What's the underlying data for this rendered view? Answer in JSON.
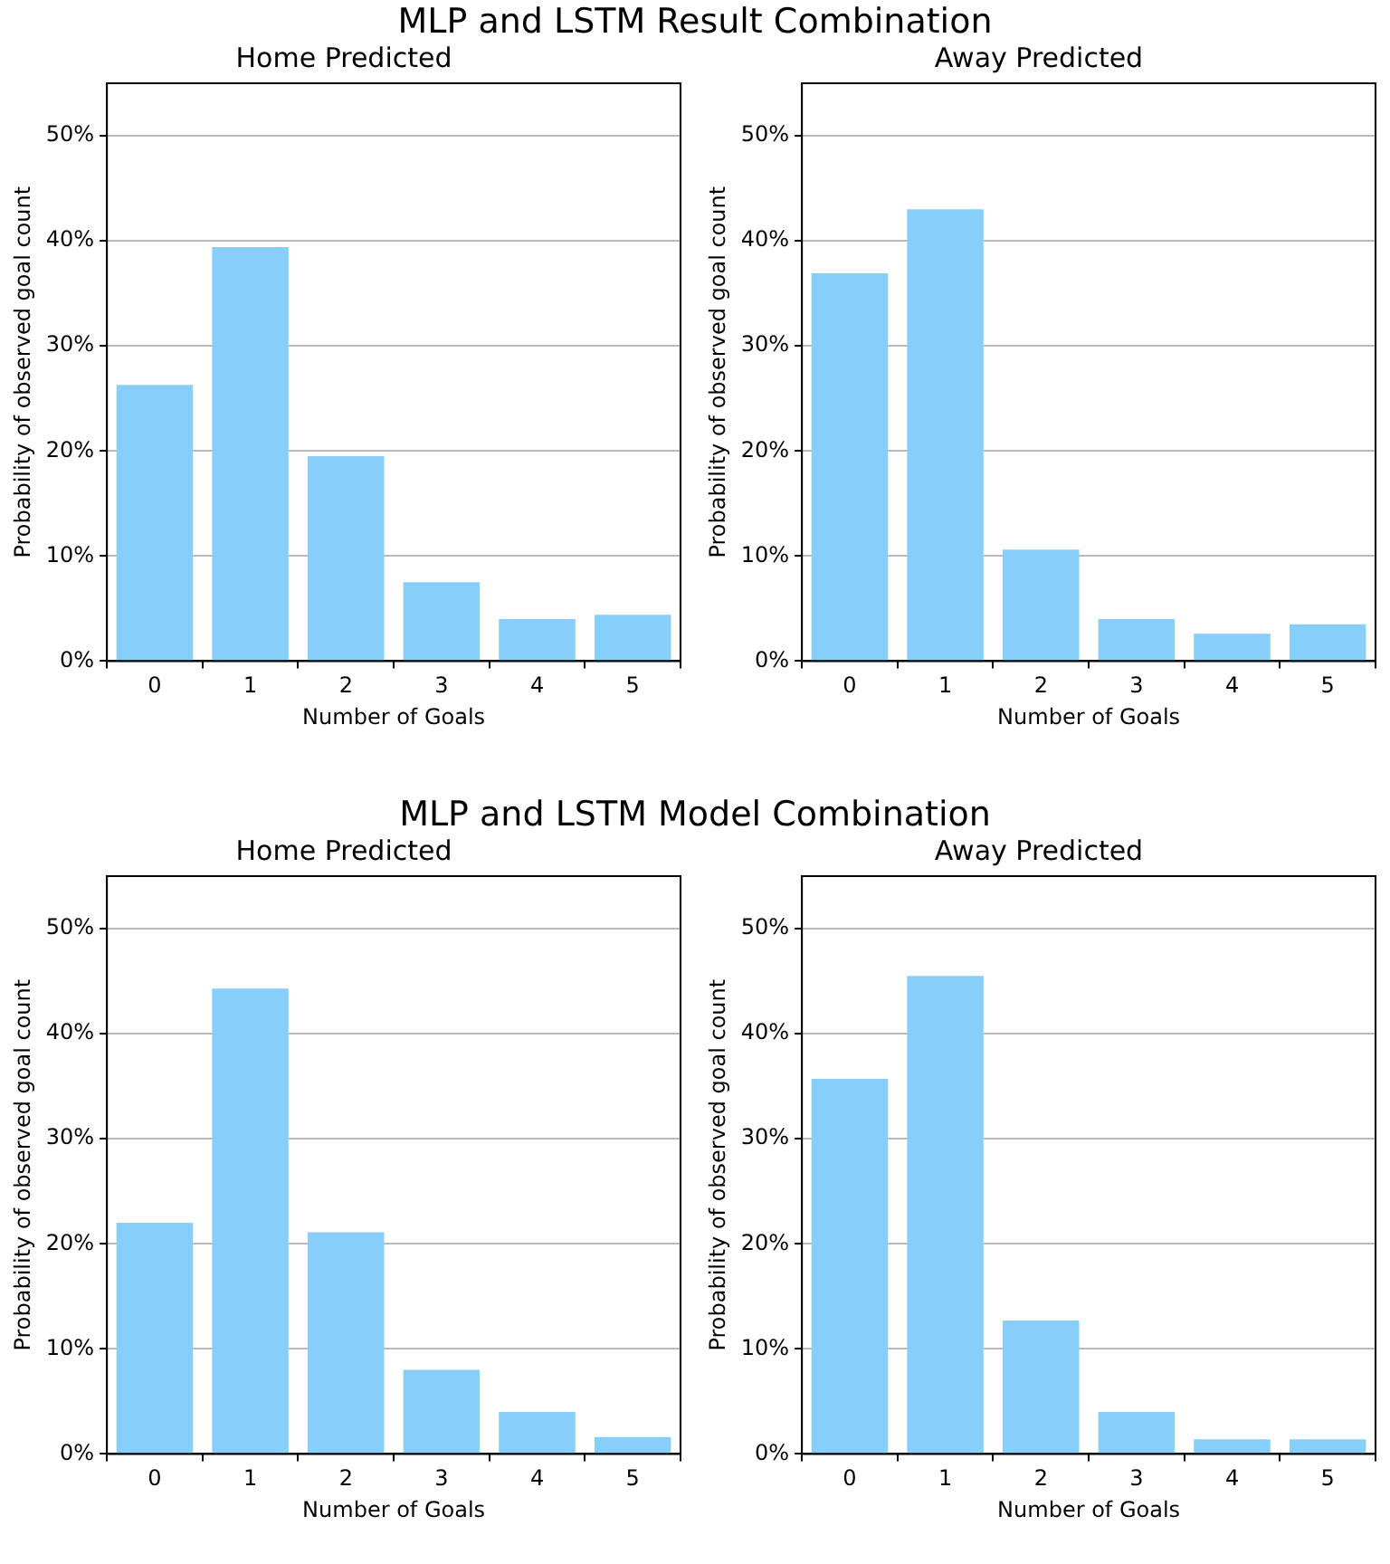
{
  "chart_data": [
    {
      "type": "bar",
      "annotations": [
        "MLP and LSTM Result Combination"
      ],
      "title": "Home Predicted",
      "xlabel": "Number of Goals",
      "ylabel": "Probability of observed goal count",
      "categories": [
        "0",
        "1",
        "2",
        "3",
        "4",
        "5"
      ],
      "values": [
        26.3,
        39.4,
        19.5,
        7.5,
        4.0,
        4.4
      ],
      "color": "#87cefa",
      "ylim": [
        0,
        55
      ],
      "yticks": [
        {
          "value": 0,
          "label": "0%"
        },
        {
          "value": 10,
          "label": "10%"
        },
        {
          "value": 20,
          "label": "20%"
        },
        {
          "value": 30,
          "label": "30%"
        },
        {
          "value": 40,
          "label": "40%"
        },
        {
          "value": 50,
          "label": "50%"
        }
      ],
      "grid": "y",
      "legend": false
    },
    {
      "type": "bar",
      "title": "Away Predicted",
      "xlabel": "Number of Goals",
      "ylabel": "Probability of observed goal count",
      "categories": [
        "0",
        "1",
        "2",
        "3",
        "4",
        "5"
      ],
      "values": [
        36.9,
        43.0,
        10.6,
        4.0,
        2.6,
        3.5
      ],
      "color": "#87cefa",
      "ylim": [
        0,
        55
      ],
      "yticks": [
        {
          "value": 0,
          "label": "0%"
        },
        {
          "value": 10,
          "label": "10%"
        },
        {
          "value": 20,
          "label": "20%"
        },
        {
          "value": 30,
          "label": "30%"
        },
        {
          "value": 40,
          "label": "40%"
        },
        {
          "value": 50,
          "label": "50%"
        }
      ],
      "grid": "y",
      "legend": false
    },
    {
      "type": "bar",
      "annotations": [
        "MLP and LSTM Model Combination"
      ],
      "title": "Home Predicted",
      "xlabel": "Number of Goals",
      "ylabel": "Probability of observed goal count",
      "categories": [
        "0",
        "1",
        "2",
        "3",
        "4",
        "5"
      ],
      "values": [
        22.0,
        44.3,
        21.1,
        8.0,
        4.0,
        1.6
      ],
      "color": "#87cefa",
      "ylim": [
        0,
        55
      ],
      "yticks": [
        {
          "value": 0,
          "label": "0%"
        },
        {
          "value": 10,
          "label": "10%"
        },
        {
          "value": 20,
          "label": "20%"
        },
        {
          "value": 30,
          "label": "30%"
        },
        {
          "value": 40,
          "label": "40%"
        },
        {
          "value": 50,
          "label": "50%"
        }
      ],
      "grid": "y",
      "legend": false
    },
    {
      "type": "bar",
      "title": "Away Predicted",
      "xlabel": "Number of Goals",
      "ylabel": "Probability of observed goal count",
      "categories": [
        "0",
        "1",
        "2",
        "3",
        "4",
        "5"
      ],
      "values": [
        35.7,
        45.5,
        12.7,
        4.0,
        1.4,
        1.4
      ],
      "color": "#87cefa",
      "ylim": [
        0,
        55
      ],
      "yticks": [
        {
          "value": 0,
          "label": "0%"
        },
        {
          "value": 10,
          "label": "10%"
        },
        {
          "value": 20,
          "label": "20%"
        },
        {
          "value": 30,
          "label": "30%"
        },
        {
          "value": 40,
          "label": "40%"
        },
        {
          "value": 50,
          "label": "50%"
        }
      ],
      "grid": "y",
      "legend": false
    }
  ]
}
